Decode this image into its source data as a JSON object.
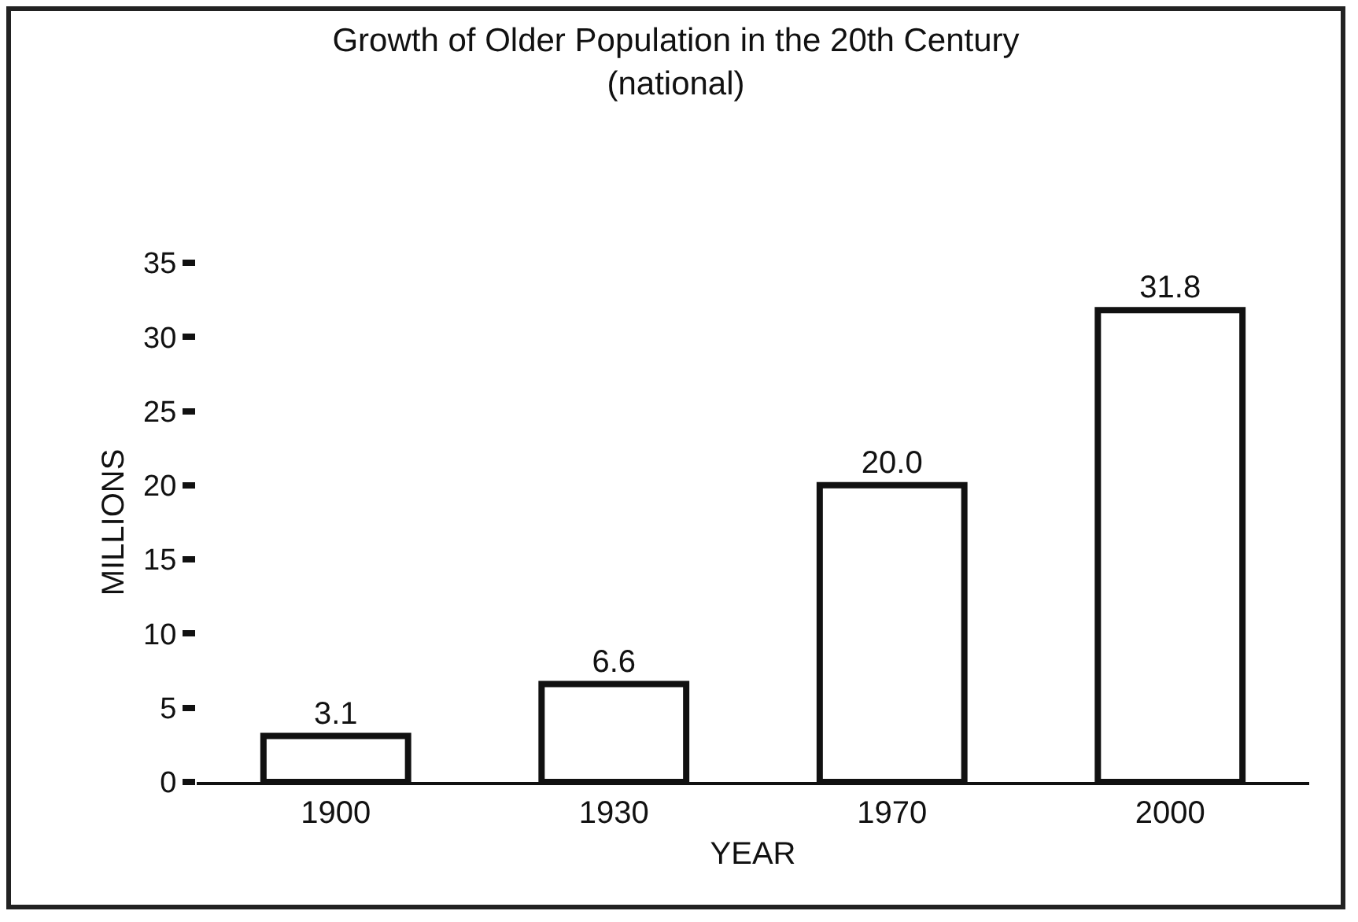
{
  "chart_data": {
    "type": "bar",
    "title": "Growth of Older Population in the 20th Century",
    "subtitle": "(national)",
    "xlabel": "YEAR",
    "ylabel": "MILLIONS",
    "categories": [
      "1900",
      "1930",
      "1970",
      "2000"
    ],
    "values": [
      3.1,
      6.6,
      20.0,
      31.8
    ],
    "value_labels": [
      "3.1",
      "6.6",
      "20.0",
      "31.8"
    ],
    "color": "#ffffff",
    "ylim": [
      0,
      35
    ],
    "yticks": [
      0,
      5,
      10,
      15,
      20,
      25,
      30,
      35
    ],
    "grid": false
  }
}
